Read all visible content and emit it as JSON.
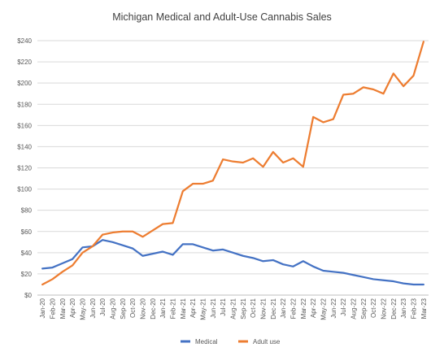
{
  "chart_data": {
    "type": "line",
    "title": "Michigan Medical and Adult-Use Cannabis Sales",
    "xlabel": "",
    "ylabel": "",
    "categories": [
      "Jan-20",
      "Feb-20",
      "Mar-20",
      "Apr-20",
      "May-20",
      "Jun-20",
      "Jul-20",
      "Aug-20",
      "Sep-20",
      "Oct-20",
      "Nov-20",
      "Dec-20",
      "Jan-21",
      "Feb-21",
      "Mar-21",
      "Apr-21",
      "May-21",
      "Jun-21",
      "Jul-21",
      "Aug-21",
      "Sep-21",
      "Oct-21",
      "Nov-21",
      "Dec-21",
      "Jan-22",
      "Feb-22",
      "Mar-22",
      "Apr-22",
      "May-22",
      "Jun-22",
      "Jul-22",
      "Aug-22",
      "Sep-22",
      "Oct-22",
      "Nov-22",
      "Dec-22",
      "Jan-23",
      "Feb-23",
      "Mar-23"
    ],
    "ylim": [
      0,
      240
    ],
    "yticks": [
      "$0",
      "$20",
      "$40",
      "$60",
      "$80",
      "$100",
      "$120",
      "$140",
      "$160",
      "$180",
      "$200",
      "$220",
      "$240"
    ],
    "grid": true,
    "legend_position": "bottom",
    "series": [
      {
        "name": "Medical",
        "color": "#4472c4",
        "values": [
          25,
          26,
          30,
          34,
          45,
          46,
          52,
          50,
          47,
          44,
          37,
          39,
          41,
          38,
          48,
          48,
          45,
          42,
          43,
          40,
          37,
          35,
          32,
          33,
          29,
          27,
          32,
          27,
          23,
          22,
          21,
          19,
          17,
          15,
          14,
          13,
          11,
          10,
          10
        ]
      },
      {
        "name": "Adult use",
        "color": "#ed7d31",
        "values": [
          10,
          15,
          22,
          28,
          40,
          46,
          57,
          59,
          60,
          60,
          55,
          61,
          67,
          68,
          98,
          105,
          105,
          108,
          128,
          126,
          125,
          129,
          121,
          135,
          125,
          129,
          121,
          168,
          163,
          166,
          189,
          190,
          196,
          194,
          190,
          209,
          197,
          207,
          239
        ]
      }
    ]
  }
}
